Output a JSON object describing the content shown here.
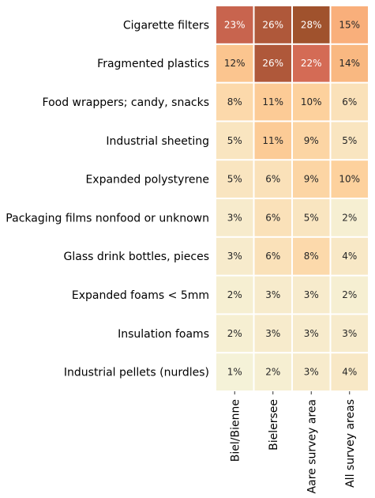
{
  "chart_data": {
    "type": "heatmap",
    "title": "",
    "xlabel": "",
    "ylabel": "",
    "rows": [
      "Cigarette filters",
      "Fragmented plastics",
      "Food wrappers; candy, snacks",
      "Industrial sheeting",
      "Expanded polystyrene",
      "Packaging films nonfood or unknown",
      "Glass drink bottles, pieces",
      "Expanded foams < 5mm",
      "Insulation foams",
      "Industrial pellets (nurdles)"
    ],
    "columns": [
      "Biel/Bienne",
      "Bielersee",
      "Aare survey area",
      "All survey areas"
    ],
    "values": [
      [
        23,
        26,
        28,
        15
      ],
      [
        12,
        26,
        22,
        14
      ],
      [
        8,
        11,
        10,
        6
      ],
      [
        5,
        11,
        9,
        5
      ],
      [
        5,
        6,
        9,
        10
      ],
      [
        3,
        6,
        5,
        2
      ],
      [
        3,
        6,
        8,
        4
      ],
      [
        2,
        3,
        3,
        2
      ],
      [
        2,
        3,
        3,
        3
      ],
      [
        1,
        2,
        3,
        4
      ]
    ],
    "cell_labels": [
      [
        "23%",
        "26%",
        "28%",
        "15%"
      ],
      [
        "12%",
        "26%",
        "22%",
        "14%"
      ],
      [
        "8%",
        "11%",
        "10%",
        "6%"
      ],
      [
        "5%",
        "11%",
        "9%",
        "5%"
      ],
      [
        "5%",
        "6%",
        "9%",
        "10%"
      ],
      [
        "3%",
        "6%",
        "5%",
        "2%"
      ],
      [
        "3%",
        "6%",
        "8%",
        "4%"
      ],
      [
        "2%",
        "3%",
        "3%",
        "2%"
      ],
      [
        "2%",
        "3%",
        "3%",
        "3%"
      ],
      [
        "1%",
        "2%",
        "3%",
        "4%"
      ]
    ],
    "value_unit": "%",
    "colorbar": false,
    "grid": false,
    "colormap": [
      "#f5f2d8",
      "#fae3bd",
      "#fdd19d",
      "#f9b57d",
      "#f8806b",
      "#c2604a",
      "#a0522d"
    ],
    "text_color_dark": "#262626",
    "text_color_light": "#ffffff"
  }
}
